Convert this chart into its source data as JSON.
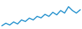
{
  "x": [
    0,
    1,
    2,
    3,
    4,
    5,
    6,
    7,
    8,
    9,
    10,
    11,
    12,
    13,
    14,
    15,
    16,
    17,
    18,
    19,
    20
  ],
  "y": [
    1.5,
    2.5,
    1.8,
    3.0,
    2.2,
    3.8,
    3.2,
    4.5,
    3.8,
    5.2,
    4.6,
    6.0,
    5.2,
    6.8,
    5.8,
    7.5,
    6.5,
    9.0,
    7.5,
    6.5,
    7.8
  ],
  "line_color": "#2e96d0",
  "background_color": "#ffffff",
  "linewidth": 1.2,
  "ylim": [
    0.5,
    11.5
  ],
  "xlim": [
    -0.3,
    20.3
  ]
}
